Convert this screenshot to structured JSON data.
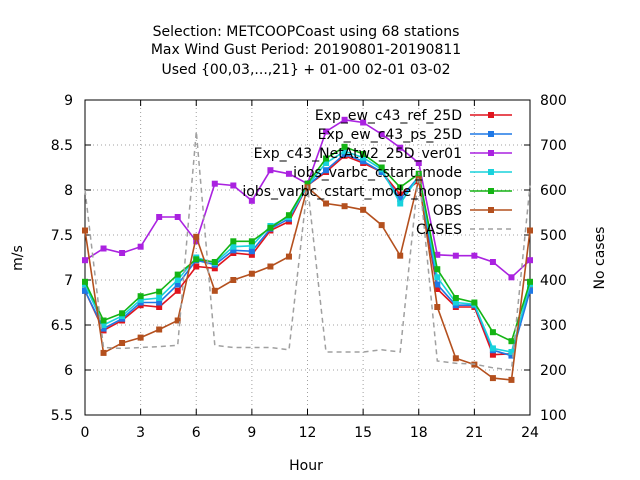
{
  "chart_data": {
    "type": "line",
    "title_lines": [
      "Selection: METCOOPCoast using    68 stations",
      "Max Wind Gust   Period: 20190801-20190811",
      "Used {00,03,...,21} + 01-00 02-01 03-02"
    ],
    "xlabel": "Hour",
    "ylabel": "m/s",
    "y2label": "No cases",
    "xlim": [
      0,
      24
    ],
    "ylim": [
      5.5,
      9
    ],
    "y2lim": [
      100,
      800
    ],
    "xticks": [
      0,
      3,
      6,
      9,
      12,
      15,
      18,
      21,
      24
    ],
    "yticks": [
      5.5,
      6,
      6.5,
      7,
      7.5,
      8,
      8.5,
      9
    ],
    "y2ticks": [
      100,
      200,
      300,
      400,
      500,
      600,
      700,
      800
    ],
    "grid": true,
    "legend_position": "top-right",
    "x": [
      0,
      1,
      2,
      3,
      4,
      5,
      6,
      7,
      8,
      9,
      10,
      11,
      12,
      13,
      14,
      15,
      16,
      17,
      18,
      19,
      20,
      21,
      22,
      23,
      24
    ],
    "series": [
      {
        "name": "Exp_ew_c43_ref_25D",
        "color": "#e0141e",
        "marker": "square",
        "values": [
          6.88,
          6.44,
          6.55,
          6.72,
          6.7,
          6.88,
          7.15,
          7.13,
          7.3,
          7.28,
          7.55,
          7.65,
          8.05,
          8.2,
          8.38,
          8.3,
          8.2,
          7.95,
          8.1,
          6.9,
          6.7,
          6.7,
          6.17,
          6.18,
          6.9
        ]
      },
      {
        "name": "Exp_ew_c43_ps_25D",
        "color": "#1e78e6",
        "marker": "square",
        "values": [
          6.88,
          6.46,
          6.57,
          6.75,
          6.75,
          6.95,
          7.22,
          7.17,
          7.33,
          7.32,
          7.57,
          7.68,
          8.05,
          8.22,
          8.4,
          8.32,
          8.2,
          7.9,
          8.15,
          6.95,
          6.72,
          6.72,
          6.22,
          6.16,
          6.88
        ]
      },
      {
        "name": "Exp_c43_NetAtw2_25D_ver01",
        "color": "#aa22e0",
        "marker": "square",
        "values": [
          7.22,
          7.35,
          7.3,
          7.37,
          7.7,
          7.7,
          7.43,
          8.07,
          8.05,
          7.88,
          8.22,
          8.18,
          8.07,
          8.65,
          8.78,
          8.75,
          8.62,
          8.47,
          8.3,
          7.28,
          7.27,
          7.27,
          7.2,
          7.03,
          7.22
        ]
      },
      {
        "name": "iobs_varbc_cstart_mode",
        "color": "#18d2dc",
        "marker": "square",
        "values": [
          6.95,
          6.5,
          6.6,
          6.78,
          6.8,
          7.0,
          7.25,
          7.19,
          7.37,
          7.38,
          7.6,
          7.7,
          8.05,
          8.3,
          8.43,
          8.36,
          8.23,
          7.85,
          8.15,
          7.03,
          6.75,
          6.73,
          6.24,
          6.2,
          6.95
        ]
      },
      {
        "name": "iobs_varbc_cstart_mode_nonop",
        "color": "#14b414",
        "marker": "square",
        "values": [
          6.98,
          6.55,
          6.63,
          6.82,
          6.87,
          7.06,
          7.23,
          7.2,
          7.43,
          7.43,
          7.58,
          7.72,
          8.07,
          8.35,
          8.48,
          8.4,
          8.25,
          8.03,
          8.18,
          7.12,
          6.8,
          6.75,
          6.42,
          6.32,
          6.98
        ]
      },
      {
        "name": "OBS",
        "color": "#b4501e",
        "marker": "square",
        "values": [
          7.55,
          6.19,
          6.3,
          6.36,
          6.45,
          6.55,
          7.48,
          6.88,
          7.0,
          7.07,
          7.15,
          7.26,
          8.03,
          7.85,
          7.82,
          7.78,
          7.61,
          7.27,
          8.12,
          6.7,
          6.13,
          6.06,
          5.91,
          5.89,
          7.55
        ]
      },
      {
        "name": "CASES",
        "color": "#a0a0a0",
        "marker": "none",
        "dashed": true,
        "axis": "y2",
        "values": [
          600,
          250,
          248,
          250,
          252,
          255,
          730,
          255,
          250,
          250,
          250,
          245,
          610,
          240,
          240,
          240,
          245,
          240,
          640,
          220,
          215,
          213,
          205,
          200,
          610
        ]
      }
    ]
  }
}
